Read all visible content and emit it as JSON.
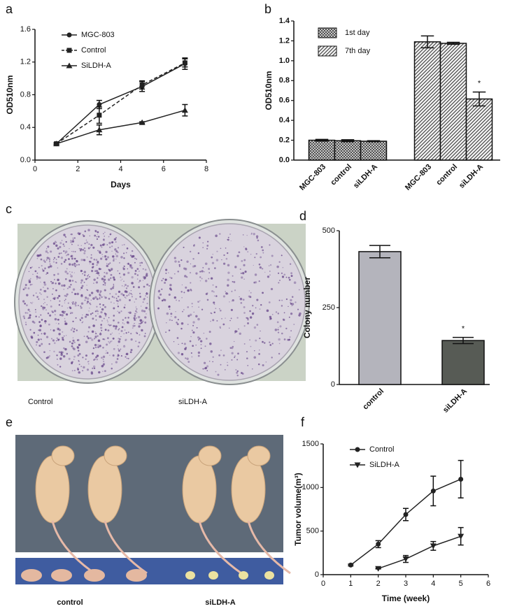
{
  "chart_data": [
    {
      "panel": "a",
      "type": "line",
      "xlabel": "Days",
      "ylabel": "OD510nm",
      "xlim": [
        0,
        8
      ],
      "xticks": [
        0,
        2,
        4,
        6,
        8
      ],
      "ylim": [
        0,
        1.6
      ],
      "yticks": [
        {
          "value": 0,
          "label": "0.0"
        },
        0.4,
        0.8,
        1.2,
        1.6
      ],
      "legend": "upper left",
      "series": [
        {
          "name": "MGC-803",
          "color": "#222222",
          "marker": "circle",
          "dash": false,
          "x": [
            1,
            3,
            5,
            7
          ],
          "values": [
            0.2,
            0.68,
            0.9,
            1.18
          ],
          "errors": [
            0.01,
            0.05,
            0.06,
            0.07
          ]
        },
        {
          "name": "Control",
          "color": "#222222",
          "marker": "square",
          "dash": true,
          "x": [
            1,
            3,
            5,
            7
          ],
          "values": [
            0.2,
            0.55,
            0.92,
            1.19
          ],
          "errors": [
            0.01,
            0.1,
            0.05,
            0.05
          ]
        },
        {
          "name": "SiLDH-A",
          "color": "#222222",
          "marker": "triangle",
          "dash": false,
          "x": [
            1,
            3,
            5,
            7
          ],
          "values": [
            0.2,
            0.37,
            0.46,
            0.61
          ],
          "errors": [
            0.01,
            0.06,
            0.01,
            0.07
          ]
        }
      ]
    },
    {
      "panel": "b",
      "type": "bar",
      "ylabel": "OD510nm",
      "categories": [
        "MGC-803",
        "control",
        "siLDH-A",
        "MGC-803",
        "control",
        "siLDH-A"
      ],
      "ylim": [
        0,
        1.4
      ],
      "yticks": [
        {
          "value": 0,
          "label": "0.0"
        },
        0.2,
        0.4,
        0.6,
        0.8,
        {
          "value": 1,
          "label": "1.0"
        },
        1.2,
        1.4
      ],
      "legend": "upper left",
      "annotation": "*",
      "series": [
        {
          "name": "1st day",
          "pattern": "crosshatch",
          "color": "#222222",
          "values": [
            0.2,
            0.195,
            0.19,
            null,
            null,
            null
          ],
          "errors": [
            0.008,
            0.01,
            0.005,
            null,
            null,
            null
          ]
        },
        {
          "name": "7th day",
          "pattern": "diagonal",
          "color": "#222222",
          "values": [
            null,
            null,
            null,
            1.19,
            1.175,
            0.615
          ],
          "errors": [
            null,
            null,
            null,
            0.06,
            0.01,
            0.07
          ]
        }
      ]
    },
    {
      "panel": "d",
      "type": "bar",
      "ylabel": "Colony number",
      "categories": [
        "control",
        "siLDH-A"
      ],
      "values": [
        432,
        143
      ],
      "errors": [
        20,
        10
      ],
      "colors": [
        "#b4b4bc",
        "#575b55"
      ],
      "ylim": [
        0,
        500
      ],
      "yticks": [
        0,
        250,
        500
      ],
      "annotation": "*"
    },
    {
      "panel": "f",
      "type": "line",
      "xlabel": "Time (week)",
      "ylabel": "Tumor volume(m³)",
      "xlim": [
        0,
        6
      ],
      "xticks": [
        0,
        1,
        2,
        3,
        4,
        5,
        6
      ],
      "ylim": [
        0,
        1500
      ],
      "yticks": [
        0,
        500,
        1000,
        1500
      ],
      "legend": "upper left",
      "series": [
        {
          "name": "Control",
          "color": "#222222",
          "marker": "circle",
          "dash": false,
          "x": [
            1,
            2,
            3,
            4,
            5
          ],
          "values": [
            110,
            350,
            690,
            960,
            1095
          ],
          "errors": [
            10,
            40,
            70,
            170,
            215
          ]
        },
        {
          "name": "SiLDH-A",
          "color": "#222222",
          "marker": "triangle-down",
          "dash": false,
          "x": [
            2,
            3,
            4,
            5
          ],
          "values": [
            70,
            180,
            330,
            440
          ],
          "errors": [
            5,
            40,
            50,
            100
          ]
        }
      ]
    }
  ],
  "photos": {
    "c": {
      "panel": "c",
      "captions": [
        "Control",
        "siLDH-A"
      ]
    },
    "e": {
      "panel": "e",
      "captions": [
        "control",
        "siLDH-A"
      ]
    }
  }
}
